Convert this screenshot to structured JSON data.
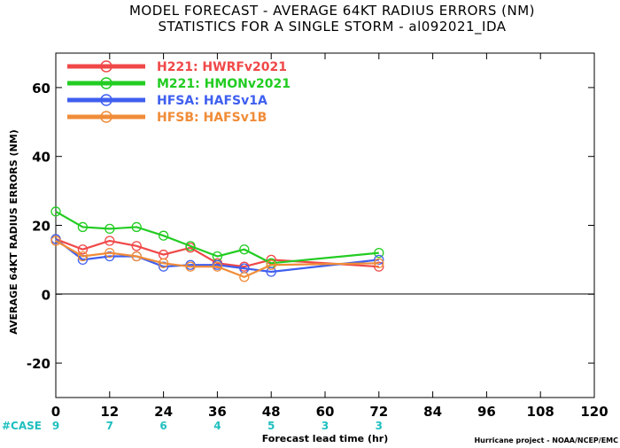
{
  "chart_data": {
    "type": "line",
    "title": "MODEL FORECAST - AVERAGE 64KT RADIUS ERRORS (NM)",
    "subtitle": "STATISTICS FOR A SINGLE STORM - al092021_IDA",
    "xlabel": "Forecast lead time (hr)",
    "ylabel": "AVERAGE 64KT RADIUS ERRORS (NM)",
    "xlim": [
      0,
      120
    ],
    "ylim": [
      -30,
      70
    ],
    "xticks": [
      0,
      12,
      24,
      36,
      48,
      60,
      72,
      84,
      96,
      108,
      120
    ],
    "yticks": [
      -20,
      0,
      20,
      40,
      60
    ],
    "zero_line": true,
    "grid": false,
    "legend_position": "top-left",
    "series": [
      {
        "name": "H221: HWRFv2021",
        "color": "#f04848",
        "x": [
          0,
          6,
          12,
          18,
          24,
          30,
          36,
          42,
          48,
          72
        ],
        "y": [
          16,
          13,
          15.5,
          14,
          11.5,
          13.5,
          9,
          8,
          10,
          8
        ]
      },
      {
        "name": "M221: HMONv2021",
        "color": "#22cc22",
        "x": [
          0,
          6,
          12,
          18,
          24,
          30,
          36,
          42,
          48,
          72
        ],
        "y": [
          24,
          19.5,
          19,
          19.5,
          17,
          14,
          11,
          13,
          9,
          12
        ]
      },
      {
        "name": "HFSA: HAFSv1A",
        "color": "#3f5fef",
        "x": [
          0,
          6,
          12,
          18,
          24,
          30,
          36,
          42,
          48,
          72
        ],
        "y": [
          16,
          10,
          11,
          11,
          8,
          8.5,
          8.5,
          7.5,
          6.5,
          10
        ]
      },
      {
        "name": "HFSB: HAFSv1B",
        "color": "#f08c38",
        "x": [
          0,
          6,
          12,
          18,
          24,
          30,
          36,
          42,
          48,
          72
        ],
        "y": [
          15.5,
          11,
          12,
          11,
          9,
          8,
          8,
          5,
          8.5,
          9
        ]
      }
    ],
    "case_label": "#CASE",
    "case_counts": [
      {
        "x": 0,
        "n": "9"
      },
      {
        "x": 12,
        "n": "7"
      },
      {
        "x": 24,
        "n": "6"
      },
      {
        "x": 36,
        "n": "4"
      },
      {
        "x": 48,
        "n": "5"
      },
      {
        "x": 60,
        "n": "3"
      },
      {
        "x": 72,
        "n": "3"
      }
    ],
    "credit": "Hurricane project - NOAA/NCEP/EMC"
  }
}
